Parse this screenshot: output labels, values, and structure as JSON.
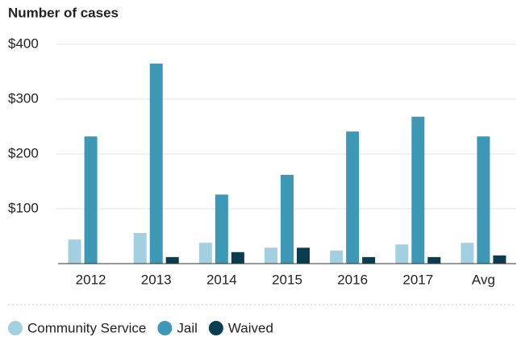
{
  "chart_data": {
    "type": "bar",
    "title": "Number of cases",
    "categories": [
      "2012",
      "2013",
      "2014",
      "2015",
      "2016",
      "2017",
      "Avg"
    ],
    "series": [
      {
        "name": "Community Service",
        "color": "#a3d0e0",
        "values": [
          44,
          56,
          38,
          29,
          24,
          35,
          38
        ]
      },
      {
        "name": "Jail",
        "color": "#3d98b5",
        "values": [
          232,
          365,
          126,
          162,
          241,
          268,
          232
        ]
      },
      {
        "name": "Waived",
        "color": "#0b3d52",
        "values": [
          0,
          12,
          21,
          29,
          12,
          12,
          15
        ]
      }
    ],
    "ylim": [
      0,
      400
    ],
    "yticks": [
      {
        "value": 100,
        "label": "$100"
      },
      {
        "value": 200,
        "label": "$200"
      },
      {
        "value": 300,
        "label": "$300"
      },
      {
        "value": 400,
        "label": "$400"
      }
    ],
    "grid": true,
    "legend": "bottom"
  }
}
